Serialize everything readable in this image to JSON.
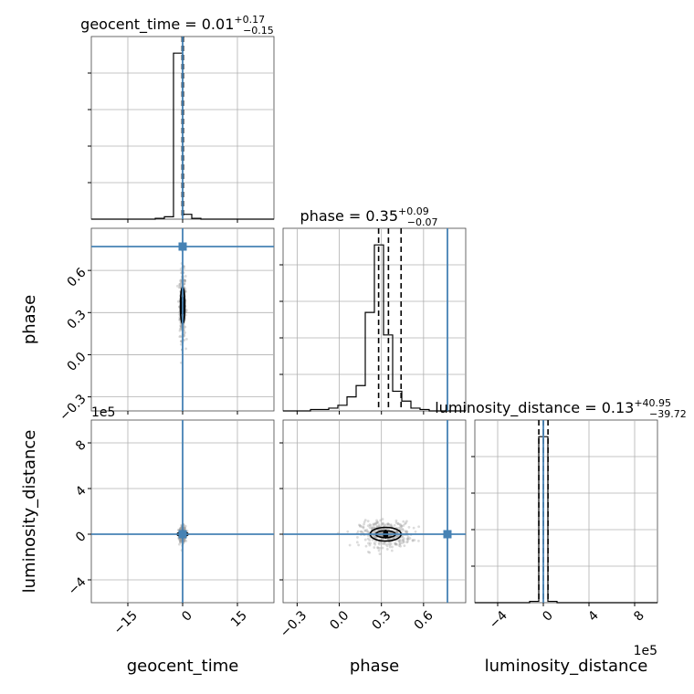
{
  "chart_data": {
    "type": "scatter",
    "subtype": "corner-plot",
    "parameters": [
      {
        "name": "geocent_time",
        "median": "0.01",
        "plus": "+0.17",
        "minus": "−0.15",
        "truth": 0.0,
        "lim": [
          -25,
          25
        ],
        "ticks": [
          -15,
          0,
          15
        ],
        "tick_labels": [
          "−15",
          "0",
          "15"
        ],
        "offset_label": ""
      },
      {
        "name": "phase",
        "median": "0.35",
        "plus": "+0.09",
        "minus": "−0.07",
        "truth": 0.77,
        "lim": [
          -0.4,
          0.9
        ],
        "ticks": [
          -0.3,
          0.0,
          0.3,
          0.6
        ],
        "tick_labels": [
          "−0.3",
          "0.0",
          "0.3",
          "0.6"
        ],
        "offset_label": ""
      },
      {
        "name": "luminosity_distance",
        "median": "0.13",
        "plus": "+40.95",
        "minus": "−39.72",
        "truth": 0.0,
        "lim": [
          -6,
          10
        ],
        "ticks": [
          -4,
          0,
          4,
          8
        ],
        "tick_labels": [
          "−4",
          "0",
          "4",
          "8"
        ],
        "offset_label": "1e5"
      }
    ],
    "histograms": [
      {
        "param": "geocent_time",
        "bins": [
          -25,
          -22.5,
          -20,
          -17.5,
          -15,
          -12.5,
          -10,
          -7.5,
          -5,
          -2.5,
          0,
          2.5,
          5,
          7.5,
          10,
          12.5,
          15,
          17.5,
          20,
          22.5,
          25
        ],
        "counts": [
          0,
          0,
          0,
          0,
          0,
          0,
          0,
          1,
          3,
          205,
          6,
          1,
          0,
          0,
          0,
          0,
          0,
          0,
          0,
          0
        ],
        "quantiles": [
          -0.14,
          0.01,
          0.18
        ]
      },
      {
        "param": "phase",
        "bins": [
          -0.4,
          -0.335,
          -0.27,
          -0.205,
          -0.14,
          -0.075,
          -0.01,
          0.055,
          0.12,
          0.185,
          0.25,
          0.315,
          0.38,
          0.445,
          0.51,
          0.575,
          0.64,
          0.705,
          0.77,
          0.835,
          0.9
        ],
        "counts": [
          0,
          0,
          0,
          1,
          1,
          2,
          4,
          10,
          18,
          70,
          118,
          54,
          14,
          7,
          2,
          1,
          0,
          0,
          0,
          0
        ],
        "quantiles": [
          0.28,
          0.35,
          0.44
        ]
      },
      {
        "param": "luminosity_distance",
        "bins": [
          -6,
          -5.2,
          -4.4,
          -3.6,
          -2.8,
          -2,
          -1.2,
          -0.4,
          0.4,
          1.2,
          2,
          2.8,
          3.6,
          4.4,
          5.2,
          6,
          6.8,
          7.6,
          8.4,
          9.2,
          10
        ],
        "counts": [
          0,
          0,
          0,
          0,
          0,
          0,
          1,
          125,
          1,
          0,
          0,
          0,
          0,
          0,
          0,
          0,
          0,
          0,
          0,
          0
        ],
        "quantiles": [
          -0.396,
          0.001,
          0.41
        ]
      }
    ],
    "scatter_panels": [
      {
        "x": "geocent_time",
        "y": "phase",
        "center": [
          0.0,
          0.35
        ],
        "spread": [
          0.4,
          0.12
        ],
        "contours": [
          [
            0.4,
            0.06
          ],
          [
            0.6,
            0.13
          ]
        ]
      },
      {
        "x": "geocent_time",
        "y": "luminosity_distance",
        "center": [
          0.0,
          0.0
        ],
        "spread": [
          0.4,
          0.35
        ],
        "contours": [
          [
            0.8,
            0.1
          ],
          [
            1.5,
            0.18
          ]
        ]
      },
      {
        "x": "phase",
        "y": "luminosity_distance",
        "center": [
          0.33,
          0.0
        ],
        "spread": [
          0.09,
          0.55
        ],
        "contours": [
          [
            0.07,
            0.3
          ],
          [
            0.11,
            0.6
          ]
        ]
      }
    ],
    "grid": true
  }
}
